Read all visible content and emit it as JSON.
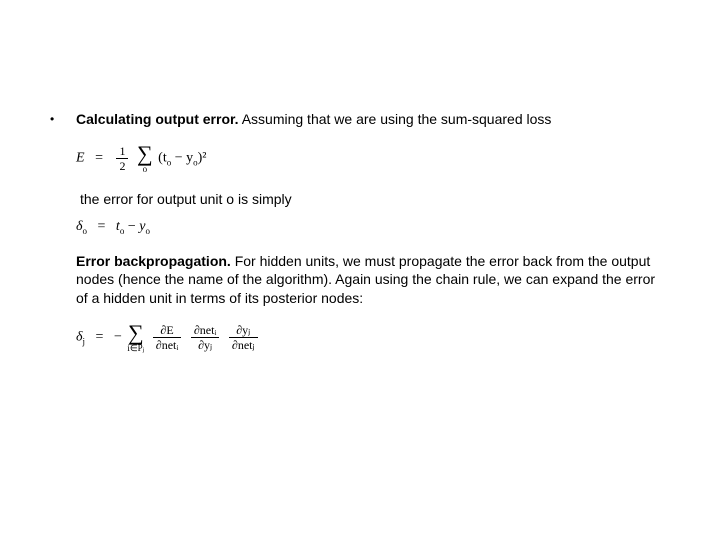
{
  "bullet": {
    "mark": "•",
    "heading": "Calculating output error.",
    "rest": " Assuming that we are using the sum-squared loss"
  },
  "eq1": {
    "lhs": "E",
    "equals": "=",
    "half_num": "1",
    "half_den": "2",
    "sum_symbol": "∑",
    "sum_sub": "o",
    "body": "(t",
    "body_sub1": "o",
    "body_mid": " − y",
    "body_sub2": "o",
    "body_end": ")²"
  },
  "line2": "the error for output unit o is simply",
  "eq2": {
    "lhs_sym": "δ",
    "lhs_sub": "o",
    "equals": "=",
    "rhs_a": "t",
    "rhs_a_sub": "o",
    "minus": " − ",
    "rhs_b": "y",
    "rhs_b_sub": "o"
  },
  "para2": {
    "heading": "Error backpropagation.",
    "rest": " For hidden units, we must propagate the error back from the output nodes (hence the name of the algorithm). Again using the chain rule, we can expand the error of a hidden unit in terms of its posterior nodes:"
  },
  "eq3": {
    "lhs_sym": "δ",
    "lhs_sub": "j",
    "equals": "=",
    "neg": "−",
    "sum_symbol": "∑",
    "sum_sub": "i∈Pⱼ",
    "f1_num": "∂E",
    "f1_den": "∂netᵢ",
    "f2_num": "∂netᵢ",
    "f2_den": "∂yⱼ",
    "f3_num": "∂yⱼ",
    "f3_den": "∂netⱼ"
  }
}
